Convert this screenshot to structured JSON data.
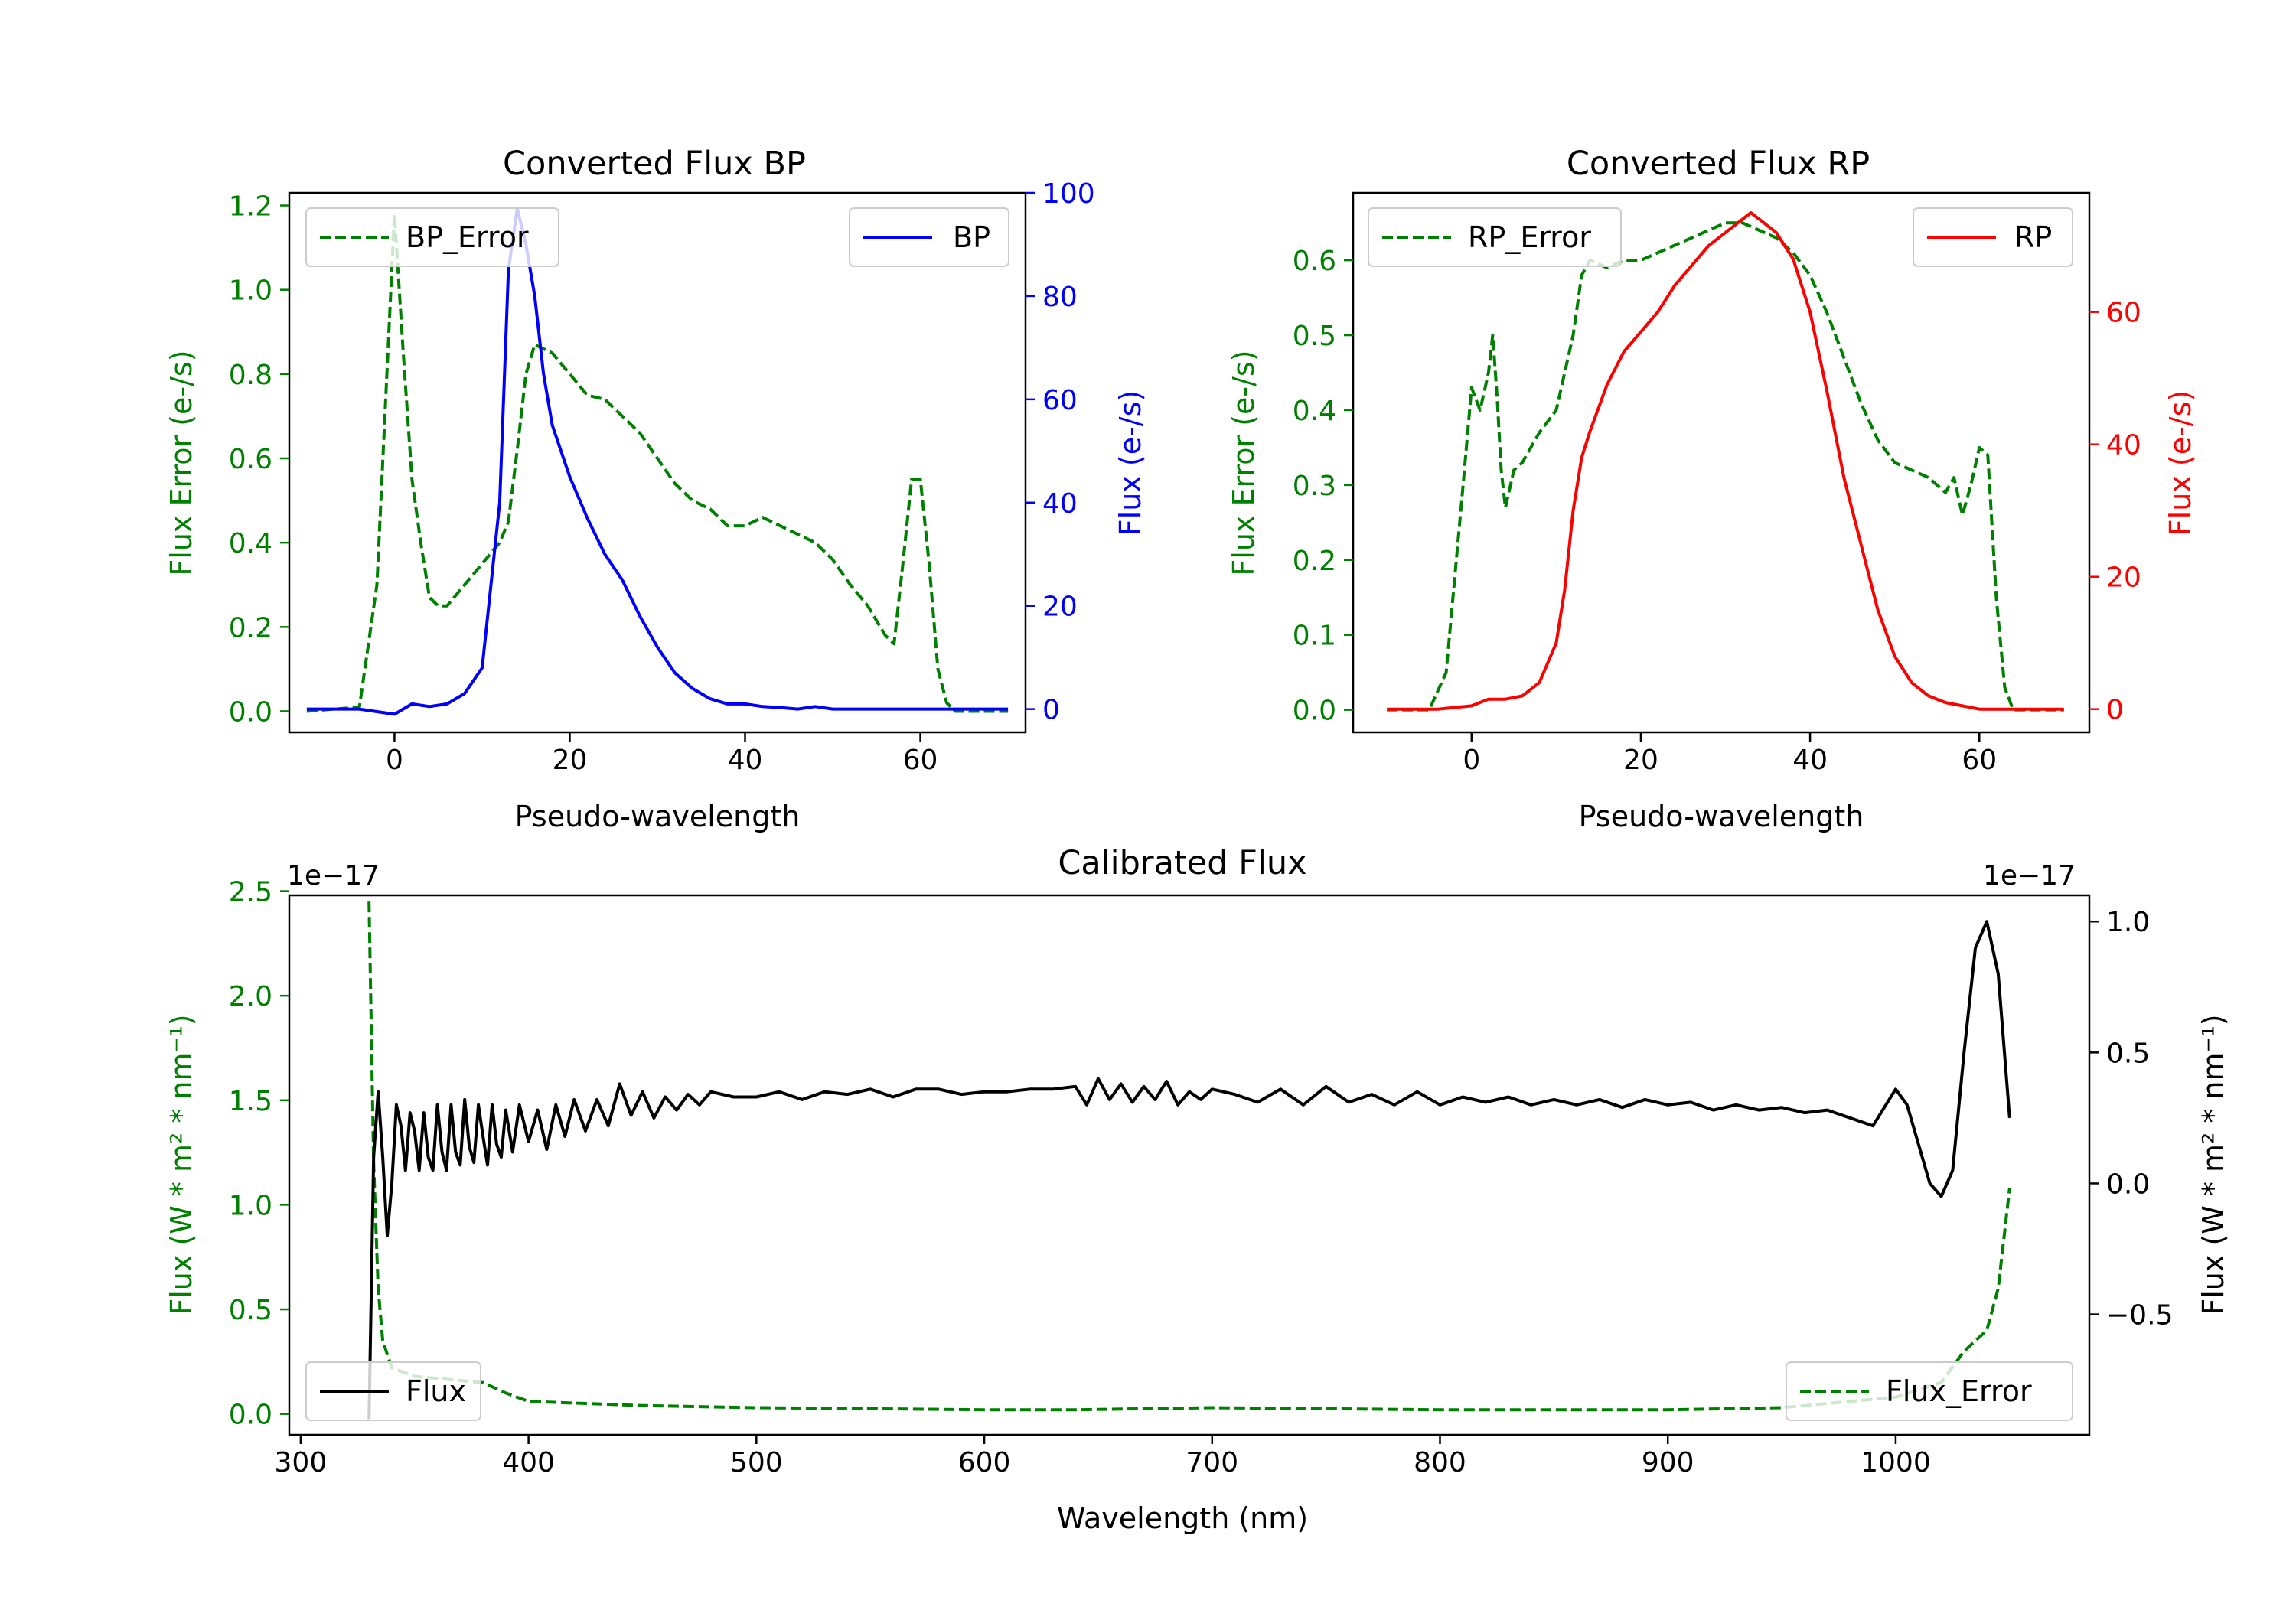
{
  "colors": {
    "error": "#008000",
    "bp": "#0000ff",
    "rp": "#ff0000",
    "flux": "#000000",
    "axis": "#000000"
  },
  "chart_data": [
    {
      "id": "bp",
      "type": "line",
      "title": "Converted Flux BP",
      "xlabel": "Pseudo-wavelength",
      "ylabel_left": "Flux Error (e-/s)",
      "ylabel_right": "Flux (e-/s)",
      "xlim": [
        -12,
        72
      ],
      "ylim_left": [
        -0.05,
        1.23
      ],
      "ylim_right": [
        -4.5,
        100
      ],
      "xticks": [
        0,
        20,
        40,
        60
      ],
      "yticks_left": [
        0.0,
        0.2,
        0.4,
        0.6,
        0.8,
        1.0,
        1.2
      ],
      "yticks_left_labels": [
        "0.0",
        "0.2",
        "0.4",
        "0.6",
        "0.8",
        "1.0",
        "1.2"
      ],
      "yticks_right": [
        0,
        20,
        40,
        60,
        80,
        100
      ],
      "yticks_right_labels": [
        "0",
        "20",
        "40",
        "60",
        "80",
        "100"
      ],
      "legend_left": "BP_Error",
      "legend_right": "BP",
      "series": [
        {
          "name": "BP_Error",
          "axis": "left",
          "style": "dashed",
          "color": "#008000",
          "x": [
            -10,
            -4,
            -2,
            0,
            1,
            2,
            3,
            4,
            5,
            6,
            8,
            10,
            12,
            13,
            14,
            15,
            16,
            18,
            20,
            22,
            24,
            26,
            28,
            30,
            32,
            34,
            36,
            38,
            40,
            42,
            44,
            46,
            48,
            50,
            52,
            54,
            56,
            57,
            58,
            59,
            60,
            61,
            62,
            63,
            64,
            66,
            70
          ],
          "y": [
            0.0,
            0.01,
            0.3,
            1.18,
            0.85,
            0.55,
            0.4,
            0.27,
            0.25,
            0.25,
            0.3,
            0.35,
            0.4,
            0.45,
            0.62,
            0.8,
            0.87,
            0.85,
            0.8,
            0.75,
            0.74,
            0.7,
            0.66,
            0.6,
            0.54,
            0.5,
            0.48,
            0.44,
            0.44,
            0.46,
            0.44,
            0.42,
            0.4,
            0.36,
            0.3,
            0.25,
            0.18,
            0.16,
            0.35,
            0.55,
            0.55,
            0.35,
            0.1,
            0.02,
            0.0,
            0.0,
            0.0
          ]
        },
        {
          "name": "BP",
          "axis": "right",
          "style": "solid",
          "color": "#0000ff",
          "x": [
            -10,
            -4,
            0,
            2,
            4,
            6,
            8,
            10,
            12,
            13,
            14,
            15,
            16,
            17,
            18,
            20,
            22,
            24,
            26,
            28,
            30,
            32,
            34,
            36,
            38,
            40,
            42,
            44,
            46,
            48,
            50,
            52,
            56,
            60,
            64,
            70
          ],
          "y": [
            0,
            0,
            -1,
            1,
            0.5,
            1,
            3,
            8,
            40,
            85,
            97,
            90,
            80,
            65,
            55,
            45,
            37,
            30,
            25,
            18,
            12,
            7,
            4,
            2,
            1,
            1,
            0.5,
            0.3,
            0,
            0.5,
            0,
            0,
            0,
            0,
            0,
            0
          ]
        }
      ]
    },
    {
      "id": "rp",
      "type": "line",
      "title": "Converted Flux RP",
      "xlabel": "Pseudo-wavelength",
      "ylabel_left": "Flux Error (e-/s)",
      "ylabel_right": "Flux (e-/s)",
      "xlim": [
        -14,
        73
      ],
      "ylim_left": [
        -0.03,
        0.69
      ],
      "ylim_right": [
        -3.5,
        78
      ],
      "xticks": [
        0,
        20,
        40,
        60
      ],
      "yticks_left": [
        0.0,
        0.1,
        0.2,
        0.3,
        0.4,
        0.5,
        0.6
      ],
      "yticks_left_labels": [
        "0.0",
        "0.1",
        "0.2",
        "0.3",
        "0.4",
        "0.5",
        "0.6"
      ],
      "yticks_right": [
        0,
        20,
        40,
        60
      ],
      "yticks_right_labels": [
        "0",
        "20",
        "40",
        "60"
      ],
      "legend_left": "RP_Error",
      "legend_right": "RP",
      "series": [
        {
          "name": "RP_Error",
          "axis": "left",
          "style": "dashed",
          "color": "#008000",
          "x": [
            -10,
            -5,
            -3,
            -1,
            0,
            1,
            2,
            2.5,
            3,
            3.5,
            4,
            5,
            6,
            8,
            10,
            12,
            13,
            14,
            16,
            18,
            20,
            22,
            24,
            26,
            28,
            30,
            32,
            34,
            36,
            38,
            40,
            42,
            44,
            46,
            48,
            50,
            52,
            54,
            56,
            57,
            58,
            59,
            60,
            61,
            62,
            63,
            64,
            70
          ],
          "y": [
            0.0,
            0.0,
            0.05,
            0.3,
            0.43,
            0.4,
            0.45,
            0.5,
            0.42,
            0.32,
            0.27,
            0.32,
            0.33,
            0.37,
            0.4,
            0.5,
            0.58,
            0.6,
            0.59,
            0.6,
            0.6,
            0.61,
            0.62,
            0.63,
            0.64,
            0.65,
            0.65,
            0.64,
            0.63,
            0.61,
            0.58,
            0.53,
            0.47,
            0.41,
            0.36,
            0.33,
            0.32,
            0.31,
            0.29,
            0.31,
            0.26,
            0.3,
            0.35,
            0.34,
            0.15,
            0.03,
            0.0,
            0.0
          ]
        },
        {
          "name": "RP",
          "axis": "right",
          "style": "solid",
          "color": "#ff0000",
          "x": [
            -10,
            -4,
            0,
            2,
            4,
            6,
            8,
            10,
            11,
            12,
            13,
            14,
            16,
            18,
            20,
            22,
            24,
            26,
            28,
            30,
            32,
            33,
            34,
            36,
            38,
            40,
            42,
            44,
            46,
            48,
            50,
            52,
            54,
            56,
            58,
            60,
            64,
            70
          ],
          "y": [
            0,
            0,
            0.5,
            1.5,
            1.5,
            2,
            4,
            10,
            18,
            30,
            38,
            42,
            49,
            54,
            57,
            60,
            64,
            67,
            70,
            72,
            74,
            75,
            74,
            72,
            68,
            60,
            48,
            35,
            25,
            15,
            8,
            4,
            2,
            1,
            0.5,
            0,
            0,
            0
          ]
        }
      ]
    },
    {
      "id": "cal",
      "type": "line",
      "title": "Calibrated Flux",
      "xlabel": "Wavelength (nm)",
      "ylabel_left": "Flux (W * m² * nm⁻¹)",
      "ylabel_right": "Flux (W * m² * nm⁻¹)",
      "offset_left": "1e−17",
      "offset_right": "1e−17",
      "xlim": [
        295,
        1085
      ],
      "ylim_left": [
        -0.1,
        2.48
      ],
      "ylim_right": [
        -0.96,
        1.1
      ],
      "xticks": [
        300,
        400,
        500,
        600,
        700,
        800,
        900,
        1000
      ],
      "yticks_left": [
        0.0,
        0.5,
        1.0,
        1.5,
        2.0,
        2.5
      ],
      "yticks_left_labels": [
        "0.0",
        "0.5",
        "1.0",
        "1.5",
        "2.0",
        "2.5"
      ],
      "yticks_right": [
        -0.5,
        0.0,
        0.5,
        1.0
      ],
      "yticks_right_labels": [
        "−0.5",
        "0.0",
        "0.5",
        "1.0"
      ],
      "legend_left": "Flux",
      "legend_right": "Flux_Error",
      "series": [
        {
          "name": "Flux_Error",
          "axis": "left",
          "style": "dashed",
          "color": "#008000",
          "x": [
            330,
            332,
            334,
            336,
            340,
            350,
            360,
            370,
            380,
            390,
            400,
            450,
            500,
            600,
            640,
            700,
            800,
            900,
            950,
            1000,
            1020,
            1030,
            1040,
            1045,
            1050
          ],
          "y": [
            2.45,
            1.2,
            0.6,
            0.35,
            0.22,
            0.18,
            0.17,
            0.16,
            0.15,
            0.1,
            0.06,
            0.04,
            0.03,
            0.02,
            0.02,
            0.03,
            0.02,
            0.02,
            0.03,
            0.08,
            0.15,
            0.3,
            0.4,
            0.6,
            1.08
          ]
        },
        {
          "name": "Flux",
          "axis": "right",
          "style": "solid",
          "color": "#000000",
          "x": [
            330,
            332,
            334,
            336,
            338,
            340,
            342,
            344,
            346,
            348,
            350,
            352,
            354,
            356,
            358,
            360,
            362,
            364,
            366,
            368,
            370,
            372,
            374,
            376,
            378,
            380,
            382,
            384,
            386,
            388,
            390,
            393,
            396,
            400,
            404,
            408,
            412,
            416,
            420,
            425,
            430,
            435,
            440,
            445,
            450,
            455,
            460,
            465,
            470,
            475,
            480,
            490,
            500,
            510,
            520,
            530,
            540,
            550,
            560,
            570,
            580,
            590,
            600,
            610,
            620,
            630,
            640,
            645,
            650,
            655,
            660,
            665,
            670,
            675,
            680,
            685,
            690,
            695,
            700,
            710,
            720,
            730,
            740,
            750,
            760,
            770,
            780,
            790,
            800,
            810,
            820,
            830,
            840,
            850,
            860,
            870,
            880,
            890,
            900,
            910,
            920,
            930,
            940,
            950,
            960,
            970,
            980,
            990,
            1000,
            1005,
            1010,
            1015,
            1020,
            1025,
            1030,
            1035,
            1040,
            1045,
            1050
          ],
          "y": [
            -0.9,
            0.1,
            0.35,
            0.1,
            -0.2,
            0.0,
            0.3,
            0.22,
            0.05,
            0.27,
            0.2,
            0.05,
            0.27,
            0.1,
            0.05,
            0.3,
            0.12,
            0.05,
            0.3,
            0.12,
            0.07,
            0.32,
            0.14,
            0.08,
            0.3,
            0.18,
            0.07,
            0.3,
            0.15,
            0.1,
            0.28,
            0.12,
            0.3,
            0.16,
            0.28,
            0.13,
            0.3,
            0.18,
            0.32,
            0.2,
            0.32,
            0.22,
            0.38,
            0.26,
            0.35,
            0.25,
            0.33,
            0.28,
            0.34,
            0.3,
            0.35,
            0.33,
            0.33,
            0.35,
            0.32,
            0.35,
            0.34,
            0.36,
            0.33,
            0.36,
            0.36,
            0.34,
            0.35,
            0.35,
            0.36,
            0.36,
            0.37,
            0.3,
            0.4,
            0.32,
            0.38,
            0.31,
            0.37,
            0.32,
            0.39,
            0.3,
            0.35,
            0.32,
            0.36,
            0.34,
            0.31,
            0.36,
            0.3,
            0.37,
            0.31,
            0.34,
            0.3,
            0.35,
            0.3,
            0.33,
            0.31,
            0.33,
            0.3,
            0.32,
            0.3,
            0.32,
            0.29,
            0.32,
            0.3,
            0.31,
            0.28,
            0.3,
            0.28,
            0.29,
            0.27,
            0.28,
            0.25,
            0.22,
            0.36,
            0.3,
            0.15,
            0.0,
            -0.05,
            0.05,
            0.5,
            0.9,
            1.0,
            0.8,
            0.25
          ]
        }
      ]
    }
  ]
}
